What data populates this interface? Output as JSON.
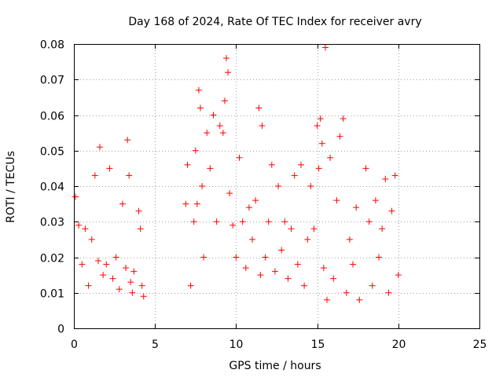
{
  "chart_data": {
    "type": "scatter",
    "title": "Day 168 of 2024, Rate Of TEC Index for receiver avry",
    "xlabel": "GPS time / hours",
    "ylabel": "ROTI / TECUs",
    "xlim": [
      0,
      25
    ],
    "ylim": [
      0,
      0.08
    ],
    "xticks": [
      0,
      5,
      10,
      15,
      20,
      25
    ],
    "xtick_labels": [
      "0",
      "5",
      "10",
      "15",
      "20",
      "25"
    ],
    "yticks": [
      0,
      0.01,
      0.02,
      0.03,
      0.04,
      0.05,
      0.06,
      0.07,
      0.08
    ],
    "ytick_labels": [
      "0",
      "0.01",
      "0.02",
      "0.03",
      "0.04",
      "0.05",
      "0.06",
      "0.07",
      "0.08"
    ],
    "grid": true,
    "marker": "+",
    "color": "#ff0000",
    "series": [
      {
        "name": "ROTI",
        "x": [
          0.1,
          0.3,
          0.5,
          0.7,
          0.9,
          1.1,
          1.3,
          1.5,
          1.6,
          1.8,
          2.0,
          2.2,
          2.4,
          2.6,
          2.8,
          3.0,
          3.2,
          3.3,
          3.4,
          3.5,
          3.6,
          3.7,
          4.0,
          4.1,
          4.2,
          4.3,
          6.9,
          7.0,
          7.2,
          7.4,
          7.5,
          7.6,
          7.7,
          7.8,
          7.9,
          8.0,
          8.2,
          8.4,
          8.6,
          8.8,
          9.0,
          9.2,
          9.3,
          9.4,
          9.5,
          9.6,
          9.8,
          10.0,
          10.2,
          10.4,
          10.6,
          10.8,
          11.0,
          11.2,
          11.4,
          11.5,
          11.6,
          11.8,
          12.0,
          12.2,
          12.4,
          12.6,
          12.8,
          13.0,
          13.2,
          13.4,
          13.6,
          13.8,
          14.0,
          14.2,
          14.4,
          14.6,
          14.8,
          15.0,
          15.1,
          15.2,
          15.3,
          15.4,
          15.5,
          15.6,
          15.8,
          16.0,
          16.2,
          16.4,
          16.6,
          16.8,
          17.0,
          17.2,
          17.4,
          17.6,
          18.0,
          18.2,
          18.4,
          18.6,
          18.8,
          19.0,
          19.2,
          19.4,
          19.6,
          19.8,
          20.0
        ],
        "y": [
          0.037,
          0.029,
          0.018,
          0.028,
          0.012,
          0.025,
          0.043,
          0.019,
          0.051,
          0.015,
          0.018,
          0.045,
          0.014,
          0.02,
          0.011,
          0.035,
          0.017,
          0.053,
          0.043,
          0.013,
          0.01,
          0.016,
          0.033,
          0.028,
          0.012,
          0.009,
          0.035,
          0.046,
          0.012,
          0.03,
          0.05,
          0.035,
          0.067,
          0.062,
          0.04,
          0.02,
          0.055,
          0.045,
          0.06,
          0.03,
          0.057,
          0.055,
          0.064,
          0.076,
          0.072,
          0.038,
          0.029,
          0.02,
          0.048,
          0.03,
          0.017,
          0.034,
          0.025,
          0.036,
          0.062,
          0.015,
          0.057,
          0.02,
          0.03,
          0.046,
          0.016,
          0.04,
          0.022,
          0.03,
          0.014,
          0.028,
          0.043,
          0.018,
          0.046,
          0.012,
          0.025,
          0.04,
          0.028,
          0.057,
          0.045,
          0.059,
          0.052,
          0.017,
          0.079,
          0.008,
          0.048,
          0.014,
          0.036,
          0.054,
          0.059,
          0.01,
          0.025,
          0.018,
          0.034,
          0.008,
          0.045,
          0.03,
          0.012,
          0.036,
          0.02,
          0.028,
          0.042,
          0.01,
          0.033,
          0.043,
          0.015
        ]
      }
    ]
  }
}
